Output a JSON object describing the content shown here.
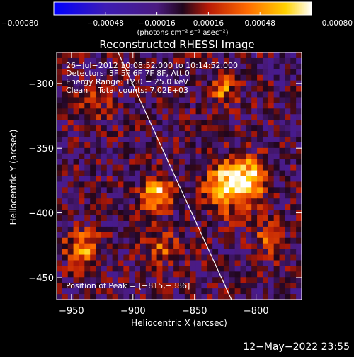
{
  "chart_data": {
    "type": "heatmap",
    "title": "Reconstructed RHESSI Image",
    "xlabel": "Heliocentric X (arcsec)",
    "ylabel": "Heliocentric Y (arcsec)",
    "xlim": [
      -962,
      -763
    ],
    "ylim": [
      -467,
      -276
    ],
    "x_ticks": [
      -950,
      -900,
      -850,
      -800
    ],
    "x_tick_labels": [
      "−950",
      "−900",
      "−850",
      "−800"
    ],
    "y_ticks": [
      -450,
      -400,
      -350,
      -300
    ],
    "y_tick_labels": [
      "−450",
      "−400",
      "−350",
      "−300"
    ],
    "colorbar": {
      "range": [
        -0.0008,
        0.0008
      ],
      "ticks": [
        -0.0008,
        -0.00048,
        -0.00016,
        0.00016,
        0.00048,
        0.0008
      ],
      "tick_labels": [
        "−0.00080",
        "−0.00048",
        "−0.00016",
        "0.00016",
        "0.00048",
        "0.00080"
      ],
      "units_label": "(photons cm⁻² s⁻¹ asec⁻²)"
    },
    "annotations": {
      "time_range": "26−Jul−2012 10:08:52.000 to 10:14:52.000",
      "detectors": "Detectors: 3F 5F 6F 7F 8F, Att 0",
      "energy_range": "Energy Range: 12.0 − 25.0 keV",
      "method_counts": "Clean    Total counts: 7.02E+03",
      "peak_position": "Position of Peak = [−815,−386]"
    },
    "limb_line": {
      "x": [
        -912,
        -820
      ],
      "y": [
        -276,
        -467
      ]
    },
    "sources": [
      {
        "x": -822,
        "y": -380,
        "amplitude": 0.00078,
        "sigma": 13
      },
      {
        "x": -805,
        "y": -372,
        "amplitude": 0.00055,
        "sigma": 10
      },
      {
        "x": -880,
        "y": -385,
        "amplitude": 0.00062,
        "sigma": 9
      },
      {
        "x": -826,
        "y": -305,
        "amplitude": 0.0005,
        "sigma": 7
      },
      {
        "x": -940,
        "y": -428,
        "amplitude": 0.00045,
        "sigma": 10
      },
      {
        "x": -878,
        "y": -425,
        "amplitude": 0.00035,
        "sigma": 10
      },
      {
        "x": -790,
        "y": -420,
        "amplitude": 0.00035,
        "sigma": 9
      },
      {
        "x": -930,
        "y": -315,
        "amplitude": 0.00025,
        "sigma": 10
      }
    ],
    "background_noise": 0.00022
  },
  "footer": {
    "timestamp": "12−May−2022 23:55"
  }
}
